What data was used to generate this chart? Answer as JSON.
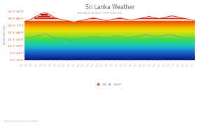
{
  "title": "Sri Lanka Weather",
  "subtitle": "AVERAGE WEEKLY TEMPERATURE",
  "ylabel": "TEMPERATURE",
  "yticks_celsius": [
    0,
    5,
    10,
    15,
    20,
    25,
    30,
    35
  ],
  "yticks_fahrenheit": [
    32,
    41,
    50,
    59,
    68,
    77,
    86,
    95
  ],
  "ymin": 0,
  "ymax": 36,
  "background_color": "#ffffff",
  "title_color": "#666666",
  "subtitle_color": "#aaaaaa",
  "watermark": "hikersbay.com/climate/srilanka",
  "legend_day_color": "#ff3300",
  "legend_night_color": "#aaaacc",
  "gradient_colors": [
    [
      0,
      "#0a1a7c"
    ],
    [
      3,
      "#1040aa"
    ],
    [
      6,
      "#1a6fcc"
    ],
    [
      9,
      "#1ab0cc"
    ],
    [
      12,
      "#20d0a0"
    ],
    [
      15,
      "#40dd40"
    ],
    [
      18,
      "#a0e020"
    ],
    [
      21,
      "#e8e000"
    ],
    [
      24,
      "#f0b000"
    ],
    [
      27,
      "#f06000"
    ],
    [
      30,
      "#e82000"
    ],
    [
      33,
      "#cc0000"
    ],
    [
      36,
      "#aa0000"
    ]
  ],
  "day_temps": [
    28,
    28.5,
    29.5,
    31,
    32,
    33.5,
    34.2,
    33.8,
    32.5,
    31,
    30,
    29.5,
    29,
    28.5,
    28,
    27.5,
    28,
    28.5,
    29,
    29.5,
    30,
    30.5,
    30,
    29.5,
    29,
    28.5,
    29,
    29.5,
    30,
    30.5,
    30,
    29.5,
    29,
    29,
    29.5,
    30,
    30.5,
    31,
    31.5,
    31,
    30.5,
    30,
    30.5,
    31,
    31.5,
    32,
    31.5,
    31,
    30.5,
    30,
    29.5,
    29,
    28.5
  ],
  "night_temps": [
    16,
    16,
    16.5,
    17,
    17.5,
    18,
    19,
    18.5,
    17,
    16.5,
    16,
    15.5,
    15,
    14.5,
    14,
    14,
    14.5,
    15,
    15.5,
    16,
    16.5,
    17,
    17,
    16.5,
    16,
    16,
    16.5,
    17,
    17.5,
    17,
    16.5,
    16,
    16,
    16.5,
    17,
    17.5,
    18,
    18.5,
    18,
    17.5,
    17,
    17,
    17.5,
    18,
    18.5,
    18,
    17.5,
    17,
    16.5,
    16,
    16,
    16,
    16
  ],
  "x_labels": [
    "1/01",
    "1/04",
    "1/07",
    "2/01",
    "2/04",
    "2/07",
    "3/01",
    "3/04",
    "3/07",
    "4/01",
    "4/04",
    "4/07",
    "5/01",
    "5/04",
    "5/07",
    "6/01",
    "6/04",
    "6/07",
    "7/01",
    "7/04",
    "7/07",
    "8/01",
    "8/04",
    "8/07",
    "9/01",
    "9/04",
    "9/07",
    "10/1",
    "10/4",
    "10/7",
    "11/1",
    "11/4",
    "11/7",
    "12/1",
    "12/4",
    "12/7",
    "12/1"
  ]
}
